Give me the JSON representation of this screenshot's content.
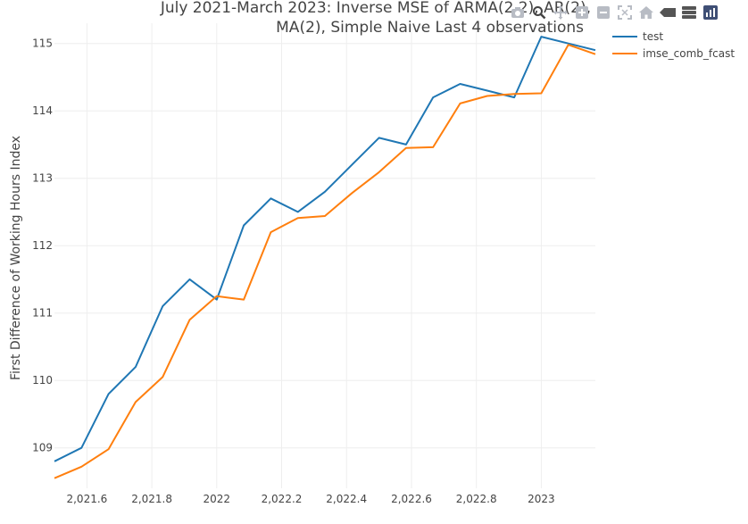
{
  "chart_data": {
    "type": "line",
    "title": [
      "July 2021-March 2023: Inverse MSE of ARMA(2,2), AR(2),",
      "MA(2), Simple Naive Last 4 observations"
    ],
    "xlabel": "",
    "ylabel": "First Difference of Working Hours Index",
    "x": [
      2021.5,
      2021.5833,
      2021.6667,
      2021.75,
      2021.8333,
      2021.9167,
      2022.0,
      2022.0833,
      2022.1667,
      2022.25,
      2022.3333,
      2022.4167,
      2022.5,
      2022.5833,
      2022.6667,
      2022.75,
      2022.8333,
      2022.9167,
      2023.0,
      2023.0833,
      2023.1667
    ],
    "series": [
      {
        "name": "test",
        "color": "#1f77b4",
        "values": [
          108.8,
          109.0,
          109.8,
          110.2,
          111.1,
          111.5,
          111.2,
          112.3,
          112.7,
          112.5,
          112.8,
          113.2,
          113.6,
          113.5,
          114.2,
          114.4,
          114.3,
          114.2,
          115.1,
          115.0,
          114.9
        ]
      },
      {
        "name": "imse_comb_fcast",
        "color": "#ff7f0e",
        "values": [
          108.55,
          108.72,
          108.98,
          109.68,
          110.05,
          110.9,
          111.25,
          111.2,
          112.2,
          112.41,
          112.44,
          112.78,
          113.09,
          113.45,
          113.46,
          114.11,
          114.22,
          114.25,
          114.26,
          114.98,
          114.84
        ]
      }
    ],
    "xlim": [
      2021.5,
      2023.1667
    ],
    "ylim": [
      108.4,
      115.3
    ],
    "xticks": [
      2021.6,
      2021.8,
      2022.0,
      2022.2,
      2022.4,
      2022.6,
      2022.8,
      2023.0
    ],
    "xtick_labels": [
      "2,021.6",
      "2,021.8",
      "2022",
      "2,022.2",
      "2,022.4",
      "2,022.6",
      "2,022.8",
      "2023"
    ],
    "yticks": [
      109,
      110,
      111,
      112,
      113,
      114,
      115
    ],
    "ytick_labels": [
      "109",
      "110",
      "111",
      "112",
      "113",
      "114",
      "115"
    ],
    "grid": true,
    "legend_position": "top-right"
  },
  "modebar": {
    "icons": [
      "camera-icon",
      "zoom-icon",
      "pan-icon",
      "zoom-in-icon",
      "zoom-out-icon",
      "autoscale-icon",
      "home-icon",
      "spike-lines-icon",
      "compare-hover-icon",
      "plotly-logo-icon"
    ]
  }
}
